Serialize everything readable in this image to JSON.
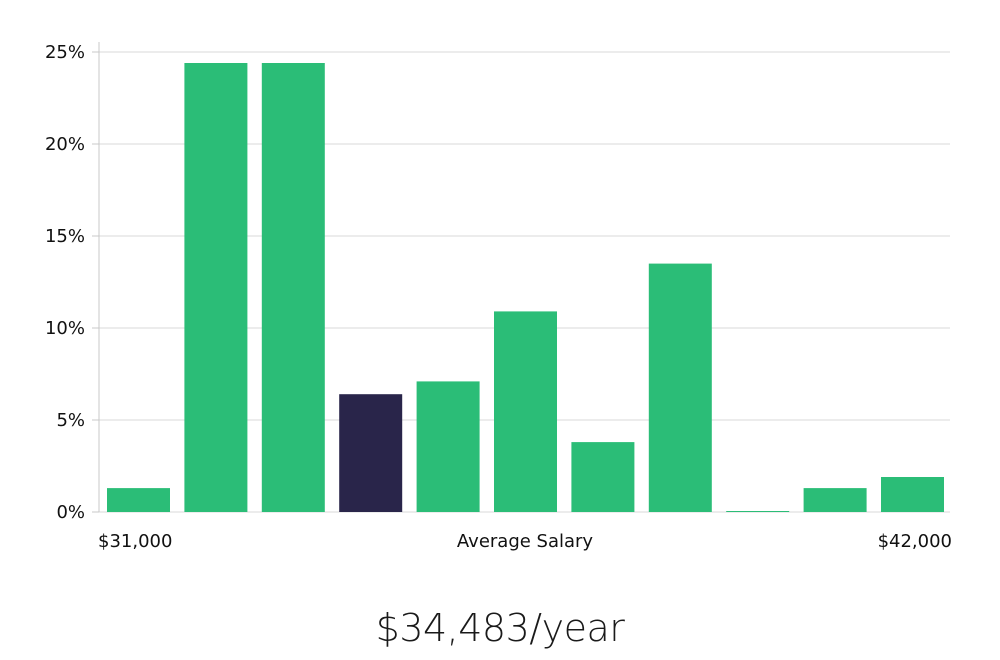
{
  "chart_data": {
    "type": "bar",
    "title": "",
    "xlabel": "Average Salary",
    "x_min_label": "$31,000",
    "x_max_label": "$42,000",
    "ylabel": "",
    "ylim": [
      0,
      25
    ],
    "y_ticks": [
      0,
      5,
      10,
      15,
      20,
      25
    ],
    "y_tick_labels": [
      "0%",
      "5%",
      "10%",
      "15%",
      "20%",
      "25%"
    ],
    "grid": true,
    "values": [
      1.3,
      24.4,
      24.4,
      6.4,
      7.1,
      10.9,
      3.8,
      13.5,
      0.05,
      1.3,
      1.9
    ],
    "highlight_index": 3,
    "colors": {
      "bar": "#2bbd77",
      "highlight": "#29254a",
      "grid": "#d9d9d9",
      "axis": "#c8c8c8"
    }
  },
  "salary_summary": "$34,483/year"
}
